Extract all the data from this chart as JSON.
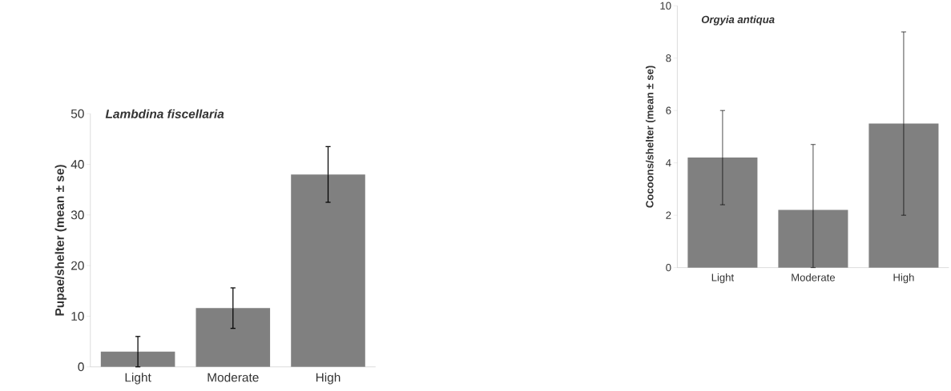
{
  "chart_data": [
    {
      "type": "bar",
      "title": "Lambdina fiscellaria",
      "ylabel": "Pupae/shelter (mean ± se)",
      "categories": [
        "Light",
        "Moderate",
        "High"
      ],
      "values": [
        3.0,
        11.6,
        38.0
      ],
      "errors": [
        3.0,
        4.0,
        5.5
      ],
      "color": "#808080",
      "ylim": [
        0,
        50
      ],
      "yticks": [
        0,
        10,
        20,
        30,
        40,
        50
      ]
    },
    {
      "type": "bar",
      "title": "Orgyia antiqua",
      "ylabel": "Cocoons/shelter (mean ± se)",
      "categories": [
        "Light",
        "Moderate",
        "High"
      ],
      "values": [
        4.2,
        2.2,
        5.5
      ],
      "errors": [
        1.8,
        [
          0,
          4.7
        ],
        3.5
      ],
      "color": "#808080",
      "ylim": [
        0,
        10
      ],
      "yticks": [
        0,
        2,
        4,
        6,
        8,
        10
      ]
    }
  ]
}
